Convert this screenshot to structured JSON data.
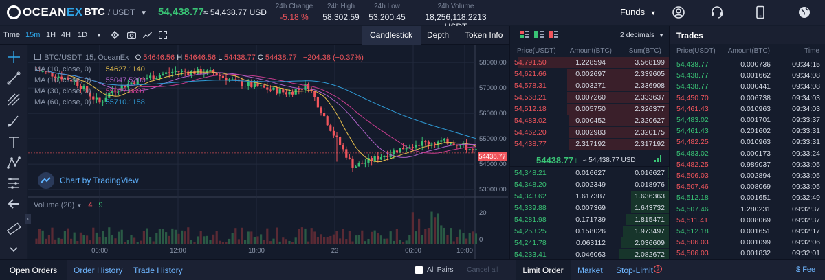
{
  "header": {
    "logo_main": "OCEAN",
    "logo_accent": "EX",
    "base": "BTC",
    "quote": "/ USDT",
    "last_price": "54,438.77",
    "last_price_usd": "≈ 54,438.77 USD",
    "stats": [
      {
        "label": "24h Change",
        "value": "-5.18 %"
      },
      {
        "label": "24h High",
        "value": "58,302.59"
      },
      {
        "label": "24h Low",
        "value": "53,200.45"
      },
      {
        "label": "24h Volume",
        "value": "18,256,118.2213 USDT"
      }
    ],
    "funds_label": "Funds"
  },
  "toolbar": {
    "time_label": "Time",
    "intervals": [
      "15m",
      "1H",
      "4H",
      "1D"
    ],
    "active_interval": "15m",
    "views": [
      "Candlestick",
      "Depth",
      "Token Info"
    ],
    "active_view": "Candlestick"
  },
  "chart": {
    "title": "BTC/USDT, 15, OceanEx",
    "ohlc": {
      "o_label": "O",
      "o": "54646.56",
      "h_label": "H",
      "h": "54646.56",
      "l_label": "L",
      "l": "54438.77",
      "c_label": "C",
      "c": "54438.77",
      "chg": "−204.38 (−0.37%)"
    },
    "ma": [
      {
        "label": "MA (10, close, 0)",
        "value": "54627.1140",
        "color": "#e8c04c"
      },
      {
        "label": "MA (10, close, 0)",
        "value": "55047.5200",
        "color": "#b062c8"
      },
      {
        "label": "MA (30, close, 0)",
        "value": "55077.6897",
        "color": "#c83c8e"
      },
      {
        "label": "MA (60, close, 0)",
        "value": "55710.1158",
        "color": "#2f9bd6"
      }
    ],
    "price_ticks": [
      "58000.00",
      "57000.00",
      "56000.00",
      "55000.00",
      "54000.00",
      "53000.00"
    ],
    "current_price_tag": "54438.77",
    "time_ticks": [
      "06:00",
      "12:00",
      "18:00",
      "23",
      "06:00",
      "10:00"
    ],
    "volume_label": "Volume (20)",
    "volume_values": {
      "a": "4",
      "b": "9"
    },
    "volume_ticks": [
      "20",
      "0"
    ],
    "watermark": "Chart by TradingView"
  },
  "orderbook": {
    "decimals_label": "2 decimals",
    "headers": [
      "Price(USDT)",
      "Amount(BTC)",
      "Sum(BTC)"
    ],
    "asks": [
      {
        "price": "54,791.50",
        "amount": "1.228594",
        "sum": "3.568199",
        "fill": 0.95
      },
      {
        "price": "54,621.66",
        "amount": "0.002697",
        "sum": "2.339605",
        "fill": 0.64
      },
      {
        "price": "54,578.31",
        "amount": "0.003271",
        "sum": "2.336908",
        "fill": 0.64
      },
      {
        "price": "54,568.21",
        "amount": "0.007260",
        "sum": "2.333637",
        "fill": 0.64
      },
      {
        "price": "54,512.18",
        "amount": "0.005750",
        "sum": "2.326377",
        "fill": 0.64
      },
      {
        "price": "54,483.02",
        "amount": "0.000452",
        "sum": "2.320627",
        "fill": 0.63
      },
      {
        "price": "54,462.20",
        "amount": "0.002983",
        "sum": "2.320175",
        "fill": 0.63
      },
      {
        "price": "54,438.77",
        "amount": "2.317192",
        "sum": "2.317192",
        "fill": 0.63
      }
    ],
    "mid_price": "54438.77",
    "mid_usd": "≈ 54,438.77 USD",
    "bids": [
      {
        "price": "54,348.21",
        "amount": "0.016627",
        "sum": "0.016627",
        "fill": 0.01
      },
      {
        "price": "54,348.20",
        "amount": "0.002349",
        "sum": "0.018976",
        "fill": 0.01
      },
      {
        "price": "54,343.62",
        "amount": "1.617387",
        "sum": "1.636363",
        "fill": 0.24
      },
      {
        "price": "54,339.88",
        "amount": "0.007369",
        "sum": "1.643732",
        "fill": 0.24
      },
      {
        "price": "54,281.98",
        "amount": "0.171739",
        "sum": "1.815471",
        "fill": 0.27
      },
      {
        "price": "54,253.25",
        "amount": "0.158026",
        "sum": "1.973497",
        "fill": 0.29
      },
      {
        "price": "54,241.78",
        "amount": "0.063112",
        "sum": "2.036609",
        "fill": 0.3
      },
      {
        "price": "54,233.41",
        "amount": "0.046063",
        "sum": "2.082672",
        "fill": 0.31
      }
    ]
  },
  "trades": {
    "title": "Trades",
    "headers": [
      "Price(USDT)",
      "Amount(BTC)",
      "Time"
    ],
    "rows": [
      {
        "price": "54,438.77",
        "amount": "0.000736",
        "time": "09:34:15",
        "dir": "up"
      },
      {
        "price": "54,438.77",
        "amount": "0.001662",
        "time": "09:34:08",
        "dir": "up"
      },
      {
        "price": "54,438.77",
        "amount": "0.000441",
        "time": "09:34:08",
        "dir": "up"
      },
      {
        "price": "54,450.70",
        "amount": "0.006738",
        "time": "09:34:03",
        "dir": "dn"
      },
      {
        "price": "54,461.43",
        "amount": "0.010963",
        "time": "09:34:03",
        "dir": "dn"
      },
      {
        "price": "54,483.02",
        "amount": "0.001701",
        "time": "09:33:37",
        "dir": "up"
      },
      {
        "price": "54,461.43",
        "amount": "0.201602",
        "time": "09:33:31",
        "dir": "up"
      },
      {
        "price": "54,482.25",
        "amount": "0.010963",
        "time": "09:33:31",
        "dir": "dn"
      },
      {
        "price": "54,483.02",
        "amount": "0.000173",
        "time": "09:33:24",
        "dir": "up"
      },
      {
        "price": "54,482.25",
        "amount": "0.989037",
        "time": "09:33:05",
        "dir": "dn"
      },
      {
        "price": "54,506.03",
        "amount": "0.002894",
        "time": "09:33:05",
        "dir": "dn"
      },
      {
        "price": "54,507.46",
        "amount": "0.008069",
        "time": "09:33:05",
        "dir": "dn"
      },
      {
        "price": "54,512.18",
        "amount": "0.001651",
        "time": "09:32:49",
        "dir": "up"
      },
      {
        "price": "54,507.46",
        "amount": "1.280231",
        "time": "09:32:37",
        "dir": "up"
      },
      {
        "price": "54,511.41",
        "amount": "0.008069",
        "time": "09:32:37",
        "dir": "dn"
      },
      {
        "price": "54,512.18",
        "amount": "0.001651",
        "time": "09:32:17",
        "dir": "up"
      },
      {
        "price": "54,506.03",
        "amount": "0.001099",
        "time": "09:32:06",
        "dir": "dn"
      },
      {
        "price": "54,506.03",
        "amount": "0.001832",
        "time": "09:32:01",
        "dir": "dn"
      }
    ]
  },
  "bottom": {
    "tabs": [
      "Open Orders",
      "Order History",
      "Trade History"
    ],
    "all_pairs": "All Pairs",
    "cancel_all": "Cancel all",
    "order_types": [
      "Limit Order",
      "Market",
      "Stop-Limit"
    ],
    "fee": "Fee"
  },
  "colors": {
    "up": "#39c375",
    "down": "#f0555c",
    "accent": "#2fa5e7"
  }
}
